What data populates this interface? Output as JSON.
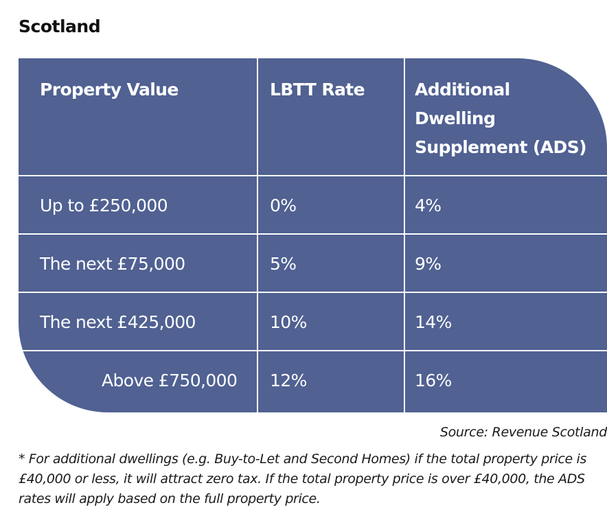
{
  "heading": "Scotland",
  "table": {
    "headers": [
      "Property Value",
      "LBTT Rate",
      "Additional Dwelling Supplement (ADS)"
    ],
    "header_ads_lines": [
      "Additional",
      "Dwelling",
      "Supplement (ADS)"
    ],
    "rows": [
      [
        "Up to £250,000",
        "0%",
        "4%"
      ],
      [
        "The next £75,000",
        "5%",
        "9%"
      ],
      [
        "The next £425,000",
        "10%",
        "14%"
      ],
      [
        "Above £750,000",
        "12%",
        "16%"
      ]
    ]
  },
  "source": "Source: Revenue Scotland",
  "footnote": "* For additional dwellings (e.g. Buy-to-Let and Second Homes) if the total property price is £40,000 or less, it will attract zero tax. If the total property price is over £40,000, the ADS rates will apply based on the full property price.",
  "colors": {
    "table_background": "#506192",
    "table_text": "#ffffff",
    "grid_lines": "#ffffff"
  }
}
